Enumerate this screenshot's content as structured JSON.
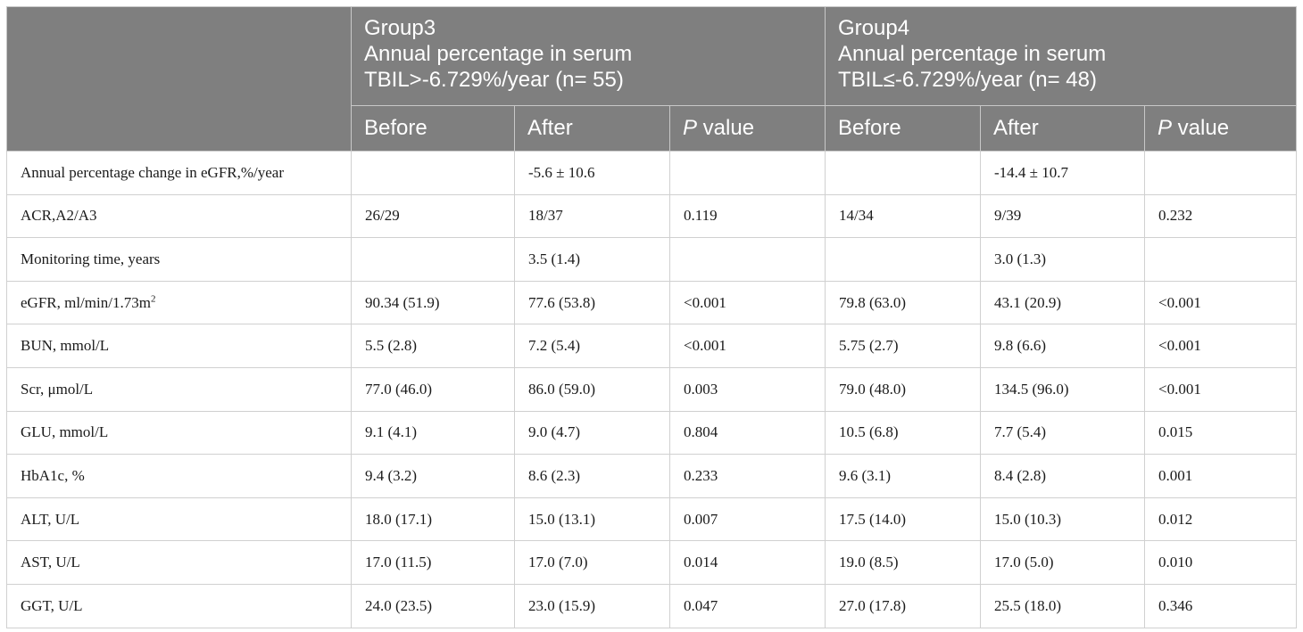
{
  "header": {
    "group3": {
      "name": "Group3",
      "description": "Annual percentage in serum TBIL>-6.729%/year (n= 55)"
    },
    "group4": {
      "name": "Group4",
      "description": "Annual percentage in serum TBIL≤-6.729%/year (n= 48)"
    },
    "subheaders": {
      "before": "Before",
      "after": "After",
      "p_italic": "P",
      "p_rest": " value"
    }
  },
  "rows": [
    {
      "label": "Annual percentage change in eGFR,%/year",
      "g3_before": "",
      "g3_after": "-5.6 ± 10.6",
      "g3_p": "",
      "g4_before": "",
      "g4_after": "-14.4 ± 10.7",
      "g4_p": ""
    },
    {
      "label": "ACR,A2/A3",
      "g3_before": "26/29",
      "g3_after": "18/37",
      "g3_p": "0.119",
      "g4_before": "14/34",
      "g4_after": "9/39",
      "g4_p": "0.232"
    },
    {
      "label": "Monitoring time, years",
      "g3_before": "",
      "g3_after": "3.5 (1.4)",
      "g3_p": "",
      "g4_before": "",
      "g4_after": "3.0 (1.3)",
      "g4_p": ""
    },
    {
      "label": "eGFR, ml/min/1.73m",
      "label_sup": "2",
      "g3_before": "90.34 (51.9)",
      "g3_after": "77.6 (53.8)",
      "g3_p": "<0.001",
      "g4_before": "79.8 (63.0)",
      "g4_after": "43.1 (20.9)",
      "g4_p": "<0.001"
    },
    {
      "label": "BUN, mmol/L",
      "g3_before": "5.5 (2.8)",
      "g3_after": "7.2 (5.4)",
      "g3_p": "<0.001",
      "g4_before": "5.75 (2.7)",
      "g4_after": "9.8 (6.6)",
      "g4_p": "<0.001"
    },
    {
      "label": "Scr, μmol/L",
      "g3_before": "77.0 (46.0)",
      "g3_after": "86.0 (59.0)",
      "g3_p": "0.003",
      "g4_before": "79.0 (48.0)",
      "g4_after": "134.5 (96.0)",
      "g4_p": "<0.001"
    },
    {
      "label": "GLU, mmol/L",
      "g3_before": "9.1 (4.1)",
      "g3_after": "9.0 (4.7)",
      "g3_p": "0.804",
      "g4_before": "10.5 (6.8)",
      "g4_after": "7.7 (5.4)",
      "g4_p": "0.015"
    },
    {
      "label": "HbA1c, %",
      "g3_before": "9.4 (3.2)",
      "g3_after": "8.6 (2.3)",
      "g3_p": "0.233",
      "g4_before": "9.6 (3.1)",
      "g4_after": "8.4 (2.8)",
      "g4_p": "0.001"
    },
    {
      "label": "ALT, U/L",
      "g3_before": "18.0 (17.1)",
      "g3_after": "15.0 (13.1)",
      "g3_p": "0.007",
      "g4_before": "17.5 (14.0)",
      "g4_after": "15.0 (10.3)",
      "g4_p": "0.012"
    },
    {
      "label": "AST, U/L",
      "g3_before": "17.0 (11.5)",
      "g3_after": "17.0 (7.0)",
      "g3_p": "0.014",
      "g4_before": "19.0 (8.5)",
      "g4_after": "17.0 (5.0)",
      "g4_p": "0.010"
    },
    {
      "label": "GGT, U/L",
      "g3_before": "24.0 (23.5)",
      "g3_after": "23.0 (15.9)",
      "g3_p": "0.047",
      "g4_before": "27.0 (17.8)",
      "g4_after": "25.5 (18.0)",
      "g4_p": "0.346"
    }
  ]
}
